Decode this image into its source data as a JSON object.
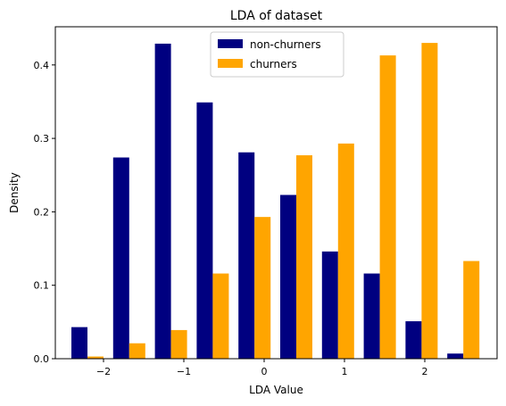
{
  "chart_data": {
    "type": "bar",
    "title": "LDA of dataset",
    "xlabel": "LDA Value",
    "ylabel": "Density",
    "xlim": [
      -2.6,
      2.9
    ],
    "ylim": [
      0,
      0.452
    ],
    "x_ticks": [
      -2,
      -1,
      0,
      1,
      2
    ],
    "x_tick_labels": [
      "−2",
      "−1",
      "0",
      "1",
      "2"
    ],
    "y_ticks": [
      0.0,
      0.1,
      0.2,
      0.3,
      0.4
    ],
    "y_tick_labels": [
      "0.0",
      "0.1",
      "0.2",
      "0.3",
      "0.4"
    ],
    "grid": false,
    "legend_position": "top-center",
    "bar_width": 0.2,
    "x": [
      -2.2,
      -1.68,
      -1.16,
      -0.64,
      -0.12,
      0.4,
      0.92,
      1.44,
      1.96,
      2.48
    ],
    "series": [
      {
        "name": "non-churners",
        "color": "#000080",
        "offset": -0.1,
        "values": [
          0.043,
          0.274,
          0.429,
          0.349,
          0.281,
          0.223,
          0.146,
          0.116,
          0.051,
          0.007
        ]
      },
      {
        "name": "churners",
        "color": "#ffa500",
        "offset": 0.1,
        "values": [
          0.003,
          0.021,
          0.039,
          0.116,
          0.193,
          0.277,
          0.293,
          0.413,
          0.43,
          0.133
        ]
      }
    ]
  }
}
